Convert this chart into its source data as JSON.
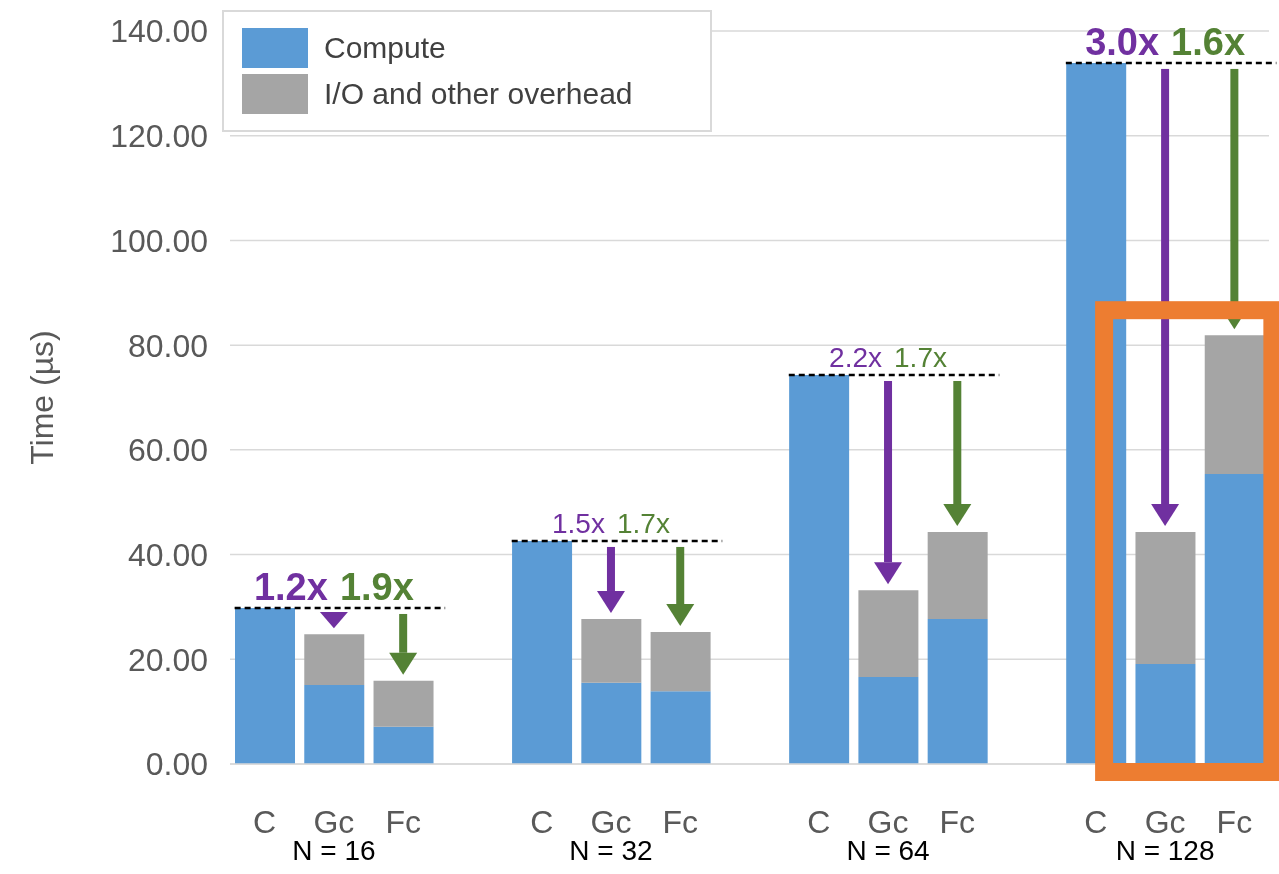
{
  "chart_data": {
    "type": "bar",
    "stacked": true,
    "ylabel": "Time (µs)",
    "categories": [
      "C",
      "Gc",
      "Fc",
      null,
      "C",
      "Gc",
      "Fc",
      null,
      "C",
      "Gc",
      "Fc",
      null,
      "C",
      "Gc",
      "Fc"
    ],
    "series": [
      {
        "name": "Compute",
        "color": "#5b9bd5",
        "values": [
          29.8,
          15.1,
          7.1,
          null,
          42.6,
          15.5,
          13.9,
          null,
          74.3,
          16.6,
          27.7,
          null,
          133.9,
          19.1,
          55.4
        ]
      },
      {
        "name": "I/O and other overhead",
        "color": "#a5a5a5",
        "values": [
          null,
          9.7,
          8.8,
          null,
          null,
          12.2,
          11.3,
          null,
          null,
          16.6,
          16.6,
          null,
          null,
          25.2,
          26.5
        ]
      }
    ],
    "ylim": [
      0,
      140
    ],
    "yticks": [
      {
        "value": 0,
        "label": "0.00"
      },
      {
        "value": 20,
        "label": "20.00"
      },
      {
        "value": 40,
        "label": "40.00"
      },
      {
        "value": 60,
        "label": "60.00"
      },
      {
        "value": 80,
        "label": "80.00"
      },
      {
        "value": 100,
        "label": "100.00"
      },
      {
        "value": 120,
        "label": "120.00"
      },
      {
        "value": 140,
        "label": "140.00"
      }
    ],
    "grid": "y",
    "legend": "top left",
    "ref_lines": [
      {
        "axis": "y",
        "value": 29.8,
        "color": "#000000",
        "line_style": "dashed"
      },
      {
        "axis": "y",
        "value": 42.6,
        "color": "#000000",
        "line_style": "dashed"
      },
      {
        "axis": "y",
        "value": 74.3,
        "color": "#000000",
        "line_style": "dashed"
      },
      {
        "axis": "y",
        "value": 133.9,
        "color": "#000000",
        "line_style": "dashed"
      }
    ],
    "annotations": [
      "1.2x",
      "1.9x",
      "1.5x",
      "1.7x",
      "2.2x",
      "1.7x",
      "3.0x",
      "1.6x",
      "N = 16",
      "N = 32",
      "N = 64",
      "N = 128"
    ]
  }
}
